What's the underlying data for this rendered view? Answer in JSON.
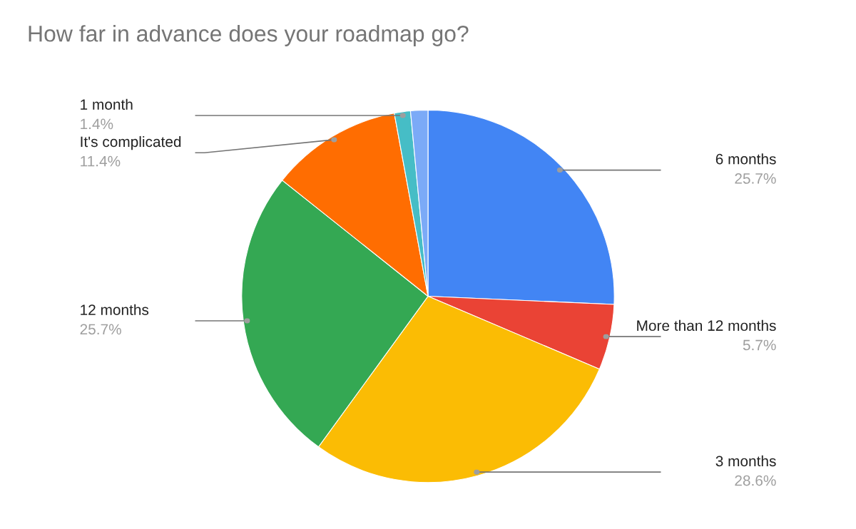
{
  "chart_data": {
    "type": "pie",
    "title": "How far in advance does your roadmap go?",
    "categories": [
      "6 months",
      "More than 12 months",
      "3 months",
      "12 months",
      "It's complicated",
      "1 month",
      null
    ],
    "values": [
      25.7,
      5.7,
      28.6,
      25.7,
      11.4,
      1.4,
      1.5
    ],
    "value_labels": [
      "25.7%",
      "5.7%",
      "28.6%",
      "25.7%",
      "11.4%",
      "1.4%",
      null
    ],
    "colors": [
      "#4285f4",
      "#ea4335",
      "#fbbc04",
      "#34a853",
      "#ff6d01",
      "#46bdc6",
      "#7baaf7"
    ],
    "legend": false
  }
}
